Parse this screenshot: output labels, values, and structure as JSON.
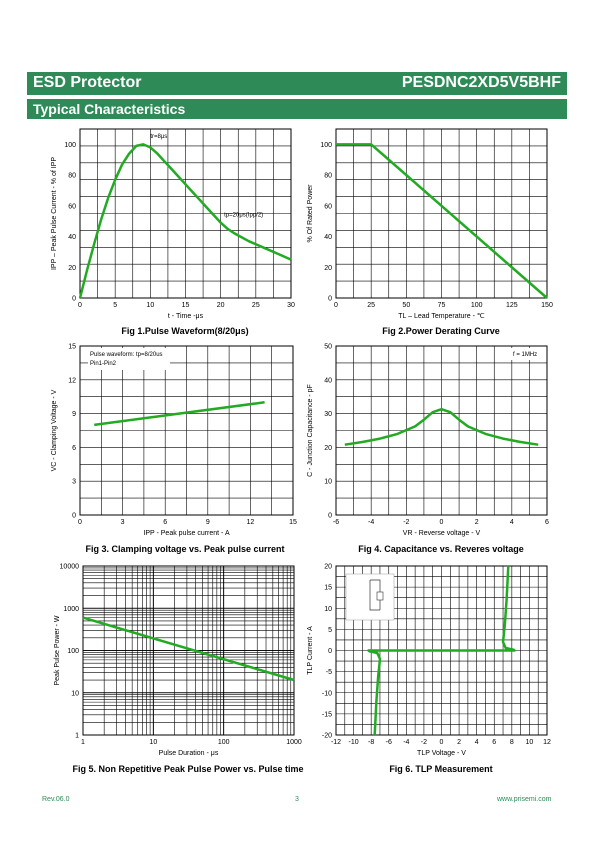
{
  "header": {
    "title": "ESD Protector",
    "part": "PESDNC2XD5V5BHF"
  },
  "section": {
    "title": "Typical Characteristics"
  },
  "colors": {
    "brand": "#2e8b57",
    "curve": "#22aa22"
  },
  "chart_data": [
    {
      "id": "fig1",
      "type": "line",
      "title": "Fig 1.Pulse Waveform(8/20μs)",
      "xlabel": "t - Time -μs",
      "ylabel": "I_PP – Peak Pulse Current - % of I_PP",
      "xlim": [
        0,
        30
      ],
      "ylim": [
        0,
        110
      ],
      "xticks": [
        "0",
        "5",
        "10",
        "15",
        "20",
        "25",
        "30"
      ],
      "yticks": [
        "0",
        "20",
        "40",
        "60",
        "80",
        "100"
      ],
      "xtick_values": [
        0,
        5,
        10,
        15,
        20,
        25,
        30
      ],
      "ytick_values": [
        0,
        20,
        40,
        60,
        80,
        100
      ],
      "grid": true,
      "annotations": [
        {
          "text": "tr=8μs",
          "x": 10,
          "y": 104
        },
        {
          "text": "tp=20μs(Ipp/2)",
          "x": 20.5,
          "y": 53
        }
      ],
      "series": [
        {
          "x": [
            0,
            1,
            2,
            3,
            4,
            5,
            6,
            7,
            8,
            9,
            10,
            11,
            12,
            13,
            14,
            15,
            16,
            17,
            18,
            19,
            20,
            21,
            22,
            24,
            26,
            28,
            30
          ],
          "y": [
            0,
            18,
            35,
            51,
            65,
            77,
            87,
            94,
            99,
            100,
            98,
            94,
            89,
            84,
            79,
            74,
            69,
            64,
            59,
            54,
            49,
            45,
            42,
            37,
            33,
            29,
            25
          ]
        }
      ]
    },
    {
      "id": "fig2",
      "type": "line",
      "title": "Fig 2.Power Derating Curve",
      "xlabel": "T_L – Lead Temperature - ℃",
      "ylabel": "% Of Rated Power",
      "xlim": [
        0,
        150
      ],
      "ylim": [
        0,
        110
      ],
      "xticks": [
        "0",
        "25",
        "50",
        "75",
        "100",
        "125",
        "150"
      ],
      "yticks": [
        "0",
        "20",
        "40",
        "60",
        "80",
        "100"
      ],
      "xtick_values": [
        0,
        25,
        50,
        75,
        100,
        125,
        150
      ],
      "ytick_values": [
        0,
        20,
        40,
        60,
        80,
        100
      ],
      "grid": true,
      "series": [
        {
          "x": [
            0,
            25,
            150
          ],
          "y": [
            100,
            100,
            0
          ]
        }
      ]
    },
    {
      "id": "fig3",
      "type": "line",
      "title": "Fig 3. Clamping voltage vs. Peak pulse current",
      "xlabel": "I_PP - Peak pulse current - A",
      "ylabel": "V_C - Clamping Voltage - V",
      "xlim": [
        0,
        15
      ],
      "ylim": [
        0,
        15
      ],
      "xticks": [
        "0",
        "3",
        "6",
        "9",
        "12",
        "15"
      ],
      "yticks": [
        "0",
        "3",
        "6",
        "9",
        "12",
        "15"
      ],
      "xtick_values": [
        0,
        3,
        6,
        9,
        12,
        15
      ],
      "ytick_values": [
        0,
        3,
        6,
        9,
        12,
        15
      ],
      "grid": true,
      "legend_text": [
        "Pulse waveform: tp=8/20us",
        "Pin1-Pin2"
      ],
      "series": [
        {
          "x": [
            1,
            13
          ],
          "y": [
            8.0,
            10.0
          ]
        }
      ]
    },
    {
      "id": "fig4",
      "type": "line",
      "title": "Fig 4. Capacitance vs. Reveres voltage",
      "xlabel": "V_R - Reverse voltage - V",
      "ylabel": "C - Junction Capacitance - pF",
      "xlim": [
        -6,
        6
      ],
      "ylim": [
        0,
        50
      ],
      "xticks": [
        "-6",
        "-4",
        "-2",
        "0",
        "2",
        "4",
        "6"
      ],
      "yticks": [
        "0",
        "10",
        "20",
        "30",
        "40",
        "50"
      ],
      "xtick_values": [
        -6,
        -4,
        -2,
        0,
        2,
        4,
        6
      ],
      "ytick_values": [
        0,
        10,
        20,
        30,
        40,
        50
      ],
      "grid": true,
      "legend_text": [
        "f = 1MHz"
      ],
      "series": [
        {
          "x": [
            -5.5,
            -4.5,
            -3.5,
            -2.5,
            -1.5,
            -1,
            -0.5,
            0,
            0.5,
            1,
            1.5,
            2.5,
            3.5,
            4.5,
            5.5
          ],
          "y": [
            20.8,
            21.6,
            22.6,
            24.0,
            26.2,
            28.2,
            30.4,
            31.3,
            30.4,
            28.2,
            26.2,
            24.0,
            22.6,
            21.6,
            20.8
          ]
        }
      ]
    },
    {
      "id": "fig5",
      "type": "line",
      "title": "Fig 5. Non Repetitive Peak Pulse Power vs. Pulse time",
      "xlabel": "Pulse Duration - μs",
      "ylabel": "Peak Pulse Power - W",
      "xscale": "log",
      "yscale": "log",
      "xlim": [
        1,
        1000
      ],
      "ylim": [
        1,
        10000
      ],
      "xticks": [
        "1",
        "10",
        "100",
        "1000"
      ],
      "yticks": [
        "1",
        "10",
        "100",
        "1000",
        "10000"
      ],
      "xtick_values": [
        1,
        10,
        100,
        1000
      ],
      "ytick_values": [
        1,
        10,
        100,
        1000,
        10000
      ],
      "grid": true,
      "series": [
        {
          "x": [
            1,
            1000
          ],
          "y": [
            600,
            20
          ]
        }
      ]
    },
    {
      "id": "fig6",
      "type": "line",
      "title": "Fig 6. TLP Measurement",
      "xlabel": "TLP Voltage - V",
      "ylabel": "TLP Current - A",
      "xlim": [
        -12,
        12
      ],
      "ylim": [
        -20,
        20
      ],
      "xticks": [
        "-12",
        "-10",
        "-8",
        "-6",
        "-4",
        "-2",
        "0",
        "2",
        "4",
        "6",
        "8",
        "10",
        "12"
      ],
      "yticks": [
        "-20",
        "-15",
        "-10",
        "-5",
        "0",
        "5",
        "10",
        "15",
        "20"
      ],
      "xtick_values": [
        -12,
        -10,
        -8,
        -6,
        -4,
        -2,
        0,
        2,
        4,
        6,
        8,
        10,
        12
      ],
      "ytick_values": [
        -20,
        -15,
        -10,
        -5,
        0,
        5,
        10,
        15,
        20
      ],
      "grid": true,
      "series": [
        {
          "x": [
            -7.6,
            -7.4,
            -7.2,
            -7.0,
            -7.3,
            -8.2,
            -8.3,
            8.3,
            8.2,
            7.3,
            7.0,
            7.2,
            7.4,
            7.6
          ],
          "y": [
            -20,
            -12,
            -6,
            -2,
            -0.6,
            -0.2,
            0,
            0,
            0.2,
            0.6,
            2,
            6,
            12,
            20
          ]
        }
      ]
    }
  ],
  "footer": {
    "rev": "Rev.06.0",
    "page": "3",
    "site": "www.prisemi.com"
  }
}
